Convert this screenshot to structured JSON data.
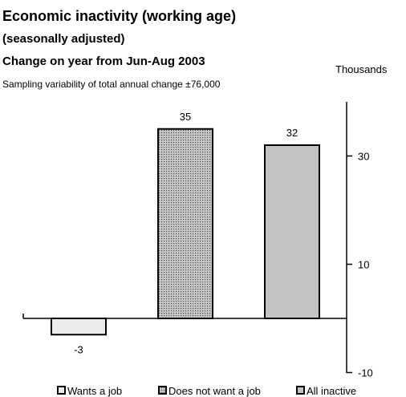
{
  "chart_data": {
    "type": "bar",
    "title": "Economic inactivity (working age)",
    "subtitle": "(seasonally adjusted)",
    "subtitle2": "Change on year from Jun-Aug 2003",
    "units": "Thousands",
    "note": "Sampling variability of total annual change  ±76,000",
    "categories": [
      "Wants a job",
      "Does not want a job",
      "All inactive"
    ],
    "values": [
      -3,
      35,
      32
    ],
    "value_labels": [
      "-3",
      "35",
      "32"
    ],
    "ylim": [
      -10,
      40
    ],
    "y_ticks": [
      -10,
      10,
      30
    ],
    "y_tick_labels": [
      "-10",
      "10",
      "30"
    ],
    "y_axis_side": "right",
    "grid": false,
    "legend_position": "bottom",
    "fills": [
      "#ebebeb",
      "#b0b0b0",
      "#c3c3c3"
    ],
    "hatched": [
      false,
      true,
      false
    ]
  }
}
